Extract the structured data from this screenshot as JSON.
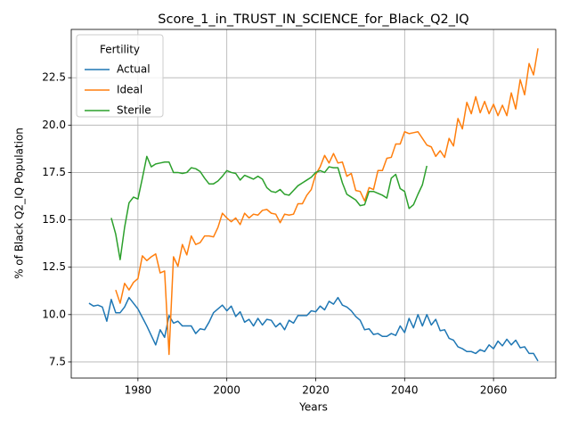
{
  "chart_data": {
    "type": "line",
    "title": "Score_1_in_TRUST_IN_SCIENCE_for_Black_Q2_IQ",
    "x_label": "Years",
    "y_label": "% of Black Q2_IQ Population",
    "legend_title": "Fertility",
    "legend_position": "upper left",
    "grid": true,
    "xlim": [
      1965,
      2074
    ],
    "ylim": [
      6.65,
      25.05
    ],
    "xticks": [
      1980,
      2000,
      2020,
      2040,
      2060
    ],
    "yticks": [
      7.5,
      {
        "value": 10,
        "label": "10.0"
      },
      12.5,
      {
        "value": 15,
        "label": "15.0"
      },
      17.5,
      {
        "value": 20,
        "label": "20.0"
      },
      22.5
    ],
    "x": [
      1969,
      1970,
      1971,
      1972,
      1973,
      1974,
      1975,
      1976,
      1977,
      1978,
      1979,
      1980,
      1981,
      1982,
      1983,
      1984,
      1985,
      1986,
      1987,
      1988,
      1989,
      1990,
      1991,
      1992,
      1993,
      1994,
      1995,
      1996,
      1997,
      1998,
      1999,
      2000,
      2001,
      2002,
      2003,
      2004,
      2005,
      2006,
      2007,
      2008,
      2009,
      2010,
      2011,
      2012,
      2013,
      2014,
      2015,
      2016,
      2017,
      2018,
      2019,
      2020,
      2021,
      2022,
      2023,
      2024,
      2025,
      2026,
      2027,
      2028,
      2029,
      2030,
      2031,
      2032,
      2033,
      2034,
      2035,
      2036,
      2037,
      2038,
      2039,
      2040,
      2041,
      2042,
      2043,
      2044,
      2045,
      2046,
      2047,
      2048,
      2049,
      2050,
      2051,
      2052,
      2053,
      2054,
      2055,
      2056,
      2057,
      2058,
      2059,
      2060,
      2061,
      2062,
      2063,
      2064,
      2065,
      2066,
      2067,
      2068,
      2069,
      2070
    ],
    "series": [
      {
        "name": "Actual",
        "color": "#1f77b4",
        "values": [
          10.6,
          10.45,
          10.5,
          10.4,
          9.65,
          10.8,
          10.1,
          10.1,
          10.4,
          10.9,
          10.6,
          10.3,
          9.85,
          9.4,
          8.9,
          8.4,
          9.2,
          8.8,
          9.95,
          9.55,
          9.65,
          9.4,
          9.4,
          9.4,
          9.0,
          9.25,
          9.2,
          9.6,
          10.1,
          10.3,
          10.5,
          10.2,
          10.45,
          9.9,
          10.15,
          9.6,
          9.75,
          9.4,
          9.8,
          9.45,
          9.75,
          9.7,
          9.35,
          9.55,
          9.2,
          9.7,
          9.55,
          9.95,
          9.95,
          9.95,
          10.2,
          10.15,
          10.45,
          10.25,
          10.7,
          10.55,
          10.9,
          10.5,
          10.4,
          10.2,
          9.9,
          9.7,
          9.2,
          9.25,
          8.95,
          9.0,
          8.85,
          8.85,
          9.0,
          8.9,
          9.4,
          9.05,
          9.8,
          9.3,
          10.0,
          9.4,
          10.0,
          9.45,
          9.75,
          9.15,
          9.2,
          8.75,
          8.65,
          8.3,
          8.2,
          8.05,
          8.05,
          7.95,
          8.15,
          8.05,
          8.4,
          8.2,
          8.6,
          8.35,
          8.7,
          8.4,
          8.65,
          8.25,
          8.3,
          7.95,
          7.95,
          7.55
        ]
      },
      {
        "name": "Ideal",
        "color": "#ff7f0e",
        "values": [
          null,
          null,
          null,
          null,
          null,
          null,
          11.3,
          10.6,
          11.65,
          11.3,
          11.7,
          11.9,
          13.1,
          12.85,
          13.05,
          13.2,
          12.2,
          12.3,
          7.9,
          13.05,
          12.55,
          13.7,
          13.15,
          14.15,
          13.7,
          13.8,
          14.15,
          14.15,
          14.1,
          14.6,
          15.35,
          15.1,
          14.9,
          15.1,
          14.75,
          15.35,
          15.1,
          15.3,
          15.25,
          15.5,
          15.55,
          15.35,
          15.3,
          14.85,
          15.3,
          15.25,
          15.3,
          15.85,
          15.85,
          16.3,
          16.6,
          17.4,
          17.8,
          18.4,
          18.0,
          18.5,
          18.0,
          18.05,
          17.3,
          17.45,
          16.55,
          16.5,
          16.0,
          16.7,
          16.6,
          17.6,
          17.6,
          18.25,
          18.3,
          19.0,
          19.0,
          19.65,
          19.55,
          19.6,
          19.65,
          19.3,
          18.95,
          18.85,
          18.35,
          18.65,
          18.3,
          19.3,
          18.9,
          20.35,
          19.8,
          21.2,
          20.6,
          21.5,
          20.65,
          21.25,
          20.6,
          21.1,
          20.5,
          21.05,
          20.5,
          21.7,
          20.85,
          22.4,
          21.6,
          23.25,
          22.65,
          24.05
        ]
      },
      {
        "name": "Sterile",
        "color": "#2ca02c",
        "values": [
          null,
          null,
          null,
          null,
          null,
          15.1,
          14.25,
          12.9,
          14.6,
          15.9,
          16.2,
          16.1,
          17.2,
          18.35,
          17.8,
          17.95,
          18.0,
          18.05,
          18.05,
          17.5,
          17.5,
          17.45,
          17.5,
          17.75,
          17.7,
          17.55,
          17.2,
          16.9,
          16.9,
          17.05,
          17.3,
          17.6,
          17.5,
          17.45,
          17.1,
          17.35,
          17.25,
          17.15,
          17.3,
          17.15,
          16.7,
          16.5,
          16.45,
          16.6,
          16.35,
          16.3,
          16.55,
          16.8,
          16.95,
          17.1,
          17.25,
          17.5,
          17.6,
          17.5,
          17.8,
          17.75,
          17.75,
          16.95,
          16.35,
          16.2,
          16.05,
          15.75,
          15.8,
          16.5,
          16.5,
          16.4,
          16.3,
          16.15,
          17.2,
          17.4,
          16.65,
          16.5,
          15.6,
          15.8,
          16.35,
          16.85,
          17.85,
          null,
          null,
          null,
          null,
          null,
          null,
          null,
          null,
          null,
          null,
          null,
          null,
          null,
          null,
          null,
          null,
          null,
          null,
          null,
          null,
          null,
          null,
          null,
          null,
          null
        ]
      }
    ]
  }
}
